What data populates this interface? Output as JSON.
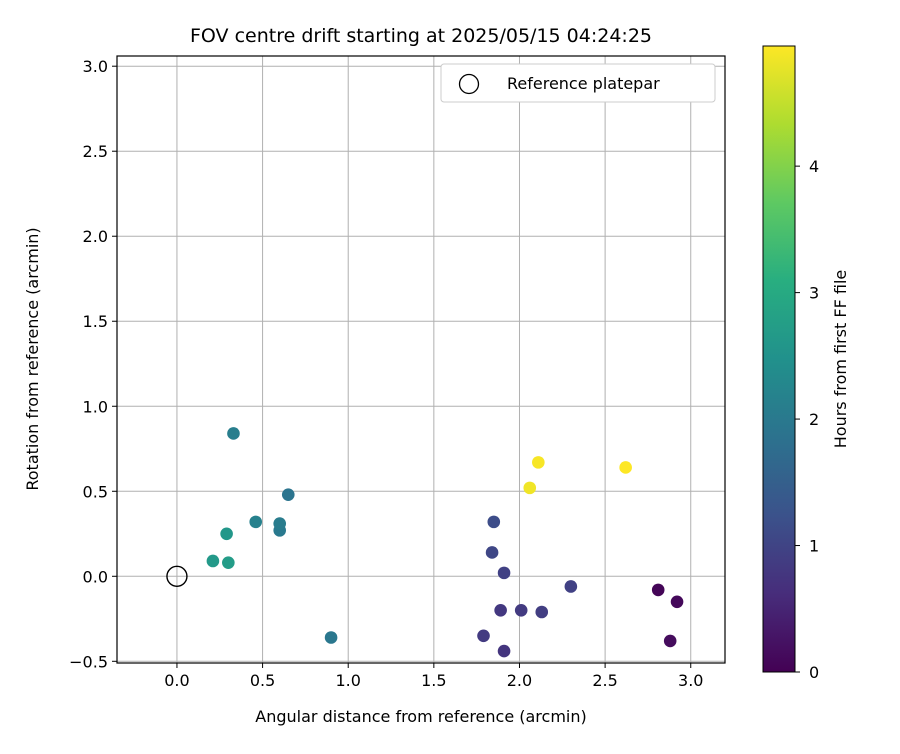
{
  "chart_data": {
    "type": "scatter",
    "title": "FOV centre drift starting at 2025/05/15 04:24:25",
    "xlabel": "Angular distance from reference (arcmin)",
    "ylabel": "Rotation from reference (arcmin)",
    "xlim": [
      -0.35,
      3.2
    ],
    "ylim": [
      -0.51,
      3.06
    ],
    "xticks": [
      0.0,
      0.5,
      1.0,
      1.5,
      2.0,
      2.5,
      3.0
    ],
    "xtick_labels": [
      "0.0",
      "0.5",
      "1.0",
      "1.5",
      "2.0",
      "2.5",
      "3.0"
    ],
    "yticks": [
      -0.5,
      0.0,
      0.5,
      1.0,
      1.5,
      2.0,
      2.5,
      3.0
    ],
    "ytick_labels": [
      "−0.5",
      "0.0",
      "0.5",
      "1.0",
      "1.5",
      "2.0",
      "2.5",
      "3.0"
    ],
    "grid": true,
    "legend": {
      "position": "top-right",
      "entries": [
        "Reference platepar"
      ]
    },
    "reference_point": {
      "name": "Reference platepar",
      "x": 0.0,
      "y": 0.0
    },
    "colorbar": {
      "label": "Hours from first FF file",
      "colormap": "viridis",
      "range": [
        0,
        4.95
      ],
      "ticks": [
        0,
        1,
        2,
        3,
        4
      ],
      "tick_labels": [
        "0",
        "1",
        "2",
        "3",
        "4"
      ]
    },
    "points": [
      {
        "x": 2.81,
        "y": -0.08,
        "c": 0.05
      },
      {
        "x": 2.92,
        "y": -0.15,
        "c": 0.1
      },
      {
        "x": 2.88,
        "y": -0.38,
        "c": 0.15
      },
      {
        "x": 2.3,
        "y": -0.06,
        "c": 0.95
      },
      {
        "x": 2.13,
        "y": -0.21,
        "c": 0.9
      },
      {
        "x": 2.01,
        "y": -0.2,
        "c": 0.85
      },
      {
        "x": 1.89,
        "y": -0.2,
        "c": 0.8
      },
      {
        "x": 1.91,
        "y": -0.44,
        "c": 0.75
      },
      {
        "x": 1.79,
        "y": -0.35,
        "c": 0.85
      },
      {
        "x": 1.91,
        "y": 0.02,
        "c": 0.95
      },
      {
        "x": 1.84,
        "y": 0.14,
        "c": 1.05
      },
      {
        "x": 1.85,
        "y": 0.32,
        "c": 1.15
      },
      {
        "x": 0.9,
        "y": -0.36,
        "c": 1.95
      },
      {
        "x": 0.6,
        "y": 0.27,
        "c": 2.0
      },
      {
        "x": 0.6,
        "y": 0.31,
        "c": 2.05
      },
      {
        "x": 0.46,
        "y": 0.32,
        "c": 2.15
      },
      {
        "x": 0.65,
        "y": 0.48,
        "c": 1.9
      },
      {
        "x": 0.33,
        "y": 0.84,
        "c": 2.1
      },
      {
        "x": 0.29,
        "y": 0.25,
        "c": 2.6
      },
      {
        "x": 0.21,
        "y": 0.09,
        "c": 2.65
      },
      {
        "x": 0.3,
        "y": 0.08,
        "c": 2.7
      },
      {
        "x": 2.06,
        "y": 0.52,
        "c": 4.85
      },
      {
        "x": 2.11,
        "y": 0.67,
        "c": 4.9
      },
      {
        "x": 2.62,
        "y": 0.64,
        "c": 4.95
      }
    ]
  }
}
